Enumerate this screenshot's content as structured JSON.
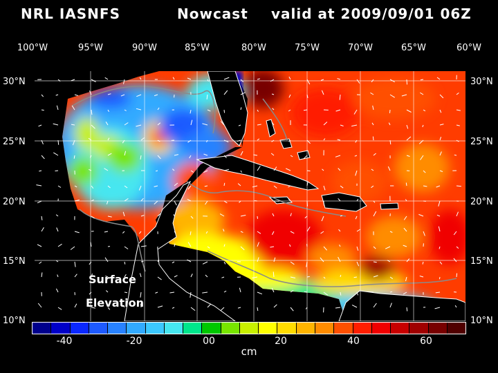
{
  "title": {
    "model": "NRL IASNFS",
    "type": "Nowcast",
    "valid": "valid at 2009/09/01 06Z"
  },
  "map": {
    "lon_labels": [
      "100°W",
      "95°W",
      "90°W",
      "85°W",
      "80°W",
      "75°W",
      "70°W",
      "65°W",
      "60°W"
    ],
    "lat_labels": [
      "30°N",
      "25°N",
      "20°N",
      "15°N",
      "10°N"
    ],
    "field_line1": "Surface",
    "field_line2": "Elevation",
    "colors": {
      "land": "#000000",
      "coast": "#ffffff",
      "isobath": "#8a8a8a"
    }
  },
  "colorbar": {
    "units": "cm",
    "ticks": [
      "-40",
      "-20",
      "00",
      "20",
      "40",
      "60"
    ],
    "colors": [
      "#00008c",
      "#0000c8",
      "#0a28ff",
      "#1e5aff",
      "#2882ff",
      "#32aaff",
      "#3cc8ff",
      "#46e6f0",
      "#00e68c",
      "#00c800",
      "#78e600",
      "#c8f000",
      "#ffff00",
      "#ffdc00",
      "#ffb400",
      "#ff8c00",
      "#ff5000",
      "#ff1e00",
      "#f00000",
      "#c80000",
      "#a00000",
      "#780000",
      "#500000"
    ]
  }
}
